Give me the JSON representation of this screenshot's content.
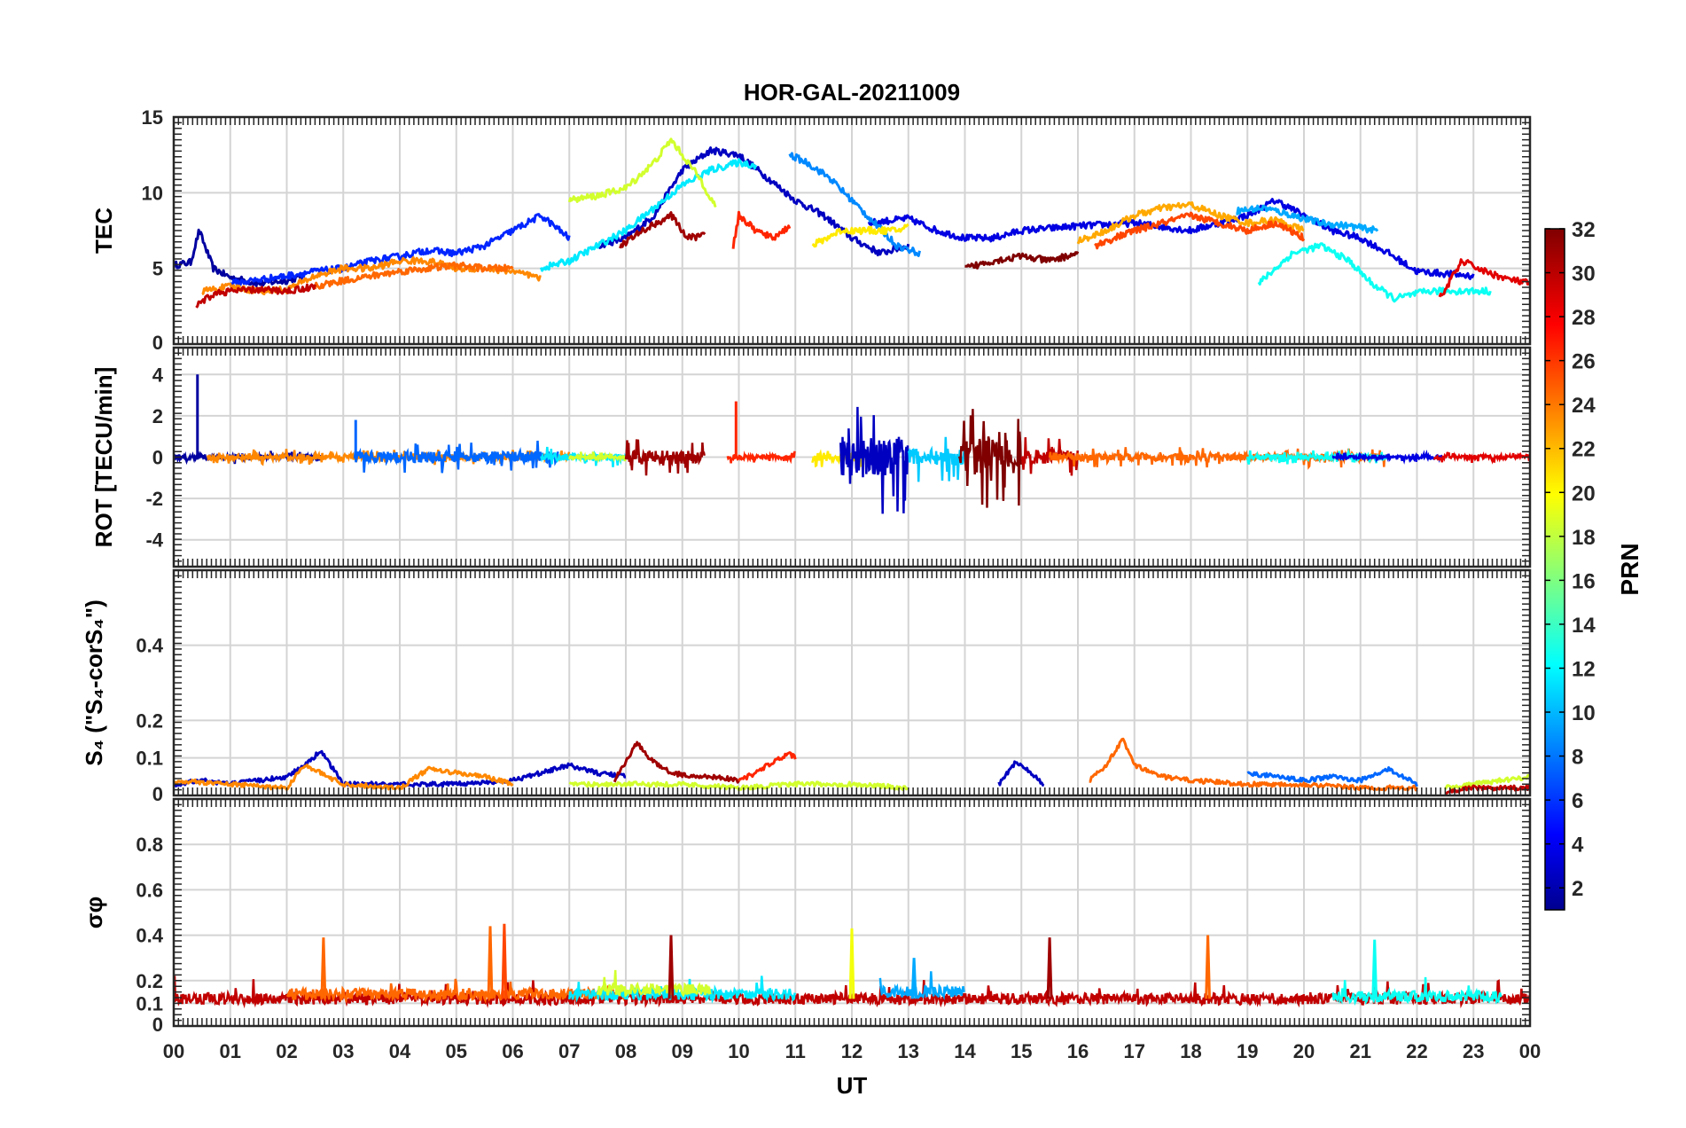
{
  "figure_title": "HOR-GAL-20211009",
  "x_axis": {
    "label": "UT",
    "range": [
      0,
      24
    ],
    "tick_labels": [
      "00",
      "01",
      "02",
      "03",
      "04",
      "05",
      "06",
      "07",
      "08",
      "09",
      "10",
      "11",
      "12",
      "13",
      "14",
      "15",
      "16",
      "17",
      "18",
      "19",
      "20",
      "21",
      "22",
      "23",
      "00"
    ]
  },
  "colorbar": {
    "label": "PRN",
    "colormap": "jet",
    "range": [
      1,
      32
    ],
    "tick_labels": [
      "2",
      "4",
      "6",
      "8",
      "10",
      "12",
      "14",
      "16",
      "18",
      "20",
      "22",
      "24",
      "26",
      "28",
      "30",
      "32"
    ]
  },
  "chart_data": [
    {
      "type": "line",
      "panel": "TEC",
      "ylabel": "TEC",
      "ylim": [
        0,
        15
      ],
      "yticks": [
        "0",
        "5",
        "10",
        "15"
      ],
      "grid": true,
      "series": [
        {
          "prn": 2,
          "x": [
            0.0,
            0.3,
            0.45,
            0.7,
            1.0,
            1.5,
            2.0,
            2.3
          ],
          "values": [
            5.2,
            5.4,
            7.5,
            5.0,
            4.4,
            4.0,
            4.2,
            4.5
          ]
        },
        {
          "prn": 3,
          "x": [
            7.5,
            8.0,
            8.5,
            9.0,
            9.5,
            10.0,
            10.5,
            11.0,
            11.5,
            12.0,
            12.5,
            13.0
          ],
          "values": [
            6.5,
            7.0,
            8.5,
            11.5,
            12.8,
            12.5,
            11.0,
            9.5,
            8.5,
            7.0,
            6.0,
            6.5
          ]
        },
        {
          "prn": 4,
          "x": [
            12.3,
            13.0,
            13.5,
            14.0,
            14.5,
            15.0,
            16.0,
            17.0,
            18.0,
            19.0,
            19.5,
            20.0,
            20.5,
            21.0,
            21.5,
            22.0,
            23.0
          ],
          "values": [
            8.0,
            8.3,
            7.5,
            7.0,
            7.0,
            7.5,
            7.8,
            8.0,
            7.5,
            8.5,
            9.5,
            8.5,
            7.5,
            7.0,
            6.0,
            4.8,
            4.5
          ]
        },
        {
          "prn": 6,
          "x": [
            1.0,
            2.0,
            2.5,
            3.0,
            3.5,
            4.0,
            4.5,
            5.0,
            5.5,
            6.0,
            6.5,
            7.0
          ],
          "values": [
            4.0,
            4.5,
            4.8,
            5.0,
            5.5,
            5.8,
            6.2,
            6.0,
            6.5,
            7.5,
            8.5,
            7.0
          ]
        },
        {
          "prn": 9,
          "x": [
            10.9,
            11.2,
            11.6,
            12.0,
            12.4,
            12.8,
            13.2
          ],
          "values": [
            12.5,
            12.0,
            11.0,
            9.5,
            8.0,
            6.5,
            6.0
          ]
        },
        {
          "prn": 10,
          "x": [
            18.8,
            19.3,
            19.8,
            20.3,
            20.8,
            21.3
          ],
          "values": [
            8.8,
            9.0,
            8.5,
            8.0,
            7.8,
            7.5
          ]
        },
        {
          "prn": 12,
          "x": [
            6.5,
            7.0,
            7.5,
            8.0,
            8.5,
            9.0,
            9.5,
            10.0,
            10.3
          ],
          "values": [
            5.0,
            5.5,
            6.5,
            7.5,
            9.0,
            10.5,
            11.5,
            12.0,
            11.8
          ]
        },
        {
          "prn": 13,
          "x": [
            19.2,
            19.8,
            20.3,
            20.8,
            21.2,
            21.6,
            22.2,
            22.8,
            23.3
          ],
          "values": [
            4.0,
            6.0,
            6.5,
            5.5,
            4.0,
            3.0,
            3.5,
            3.5,
            3.5
          ]
        },
        {
          "prn": 19,
          "x": [
            7.0,
            7.5,
            8.0,
            8.5,
            8.8,
            9.0,
            9.3,
            9.6
          ],
          "values": [
            9.5,
            9.8,
            10.3,
            12.0,
            13.5,
            12.5,
            11.0,
            9.0
          ]
        },
        {
          "prn": 21,
          "x": [
            11.3,
            11.8,
            12.3,
            12.8,
            13.0
          ],
          "values": [
            6.5,
            7.5,
            7.5,
            7.5,
            7.8
          ]
        },
        {
          "prn": 23,
          "x": [
            16.0,
            16.5,
            17.0,
            17.5,
            18.0,
            18.5,
            19.0,
            19.5,
            20.0
          ],
          "values": [
            6.8,
            7.5,
            8.5,
            9.0,
            9.2,
            8.5,
            8.0,
            8.2,
            7.5
          ]
        },
        {
          "prn": 24,
          "x": [
            0.5,
            1.0,
            1.5,
            2.0,
            2.5,
            3.0,
            3.5,
            4.0,
            4.5,
            5.0,
            5.5,
            6.0,
            6.5
          ],
          "values": [
            3.5,
            3.8,
            3.5,
            3.6,
            4.5,
            5.0,
            5.0,
            5.5,
            5.5,
            5.0,
            5.0,
            4.8,
            4.3
          ]
        },
        {
          "prn": 25,
          "x": [
            2.5,
            3.0,
            3.5,
            4.0,
            4.5,
            5.0,
            5.5,
            6.0
          ],
          "values": [
            3.8,
            4.2,
            4.5,
            4.8,
            5.0,
            5.2,
            5.0,
            5.0
          ]
        },
        {
          "prn": 26,
          "x": [
            16.3,
            17.0,
            17.5,
            18.0,
            18.5,
            19.0,
            19.5,
            20.0
          ],
          "values": [
            6.5,
            7.5,
            8.0,
            8.5,
            8.0,
            7.5,
            8.0,
            7.0
          ]
        },
        {
          "prn": 27,
          "x": [
            9.9,
            10.0,
            10.3,
            10.6,
            10.9
          ],
          "values": [
            6.5,
            8.5,
            7.5,
            7.0,
            7.8
          ]
        },
        {
          "prn": 29,
          "x": [
            22.4,
            22.8,
            23.2,
            23.6,
            24.0
          ],
          "values": [
            3.0,
            5.5,
            4.8,
            4.3,
            4.0
          ]
        },
        {
          "prn": 30,
          "x": [
            0.4,
            0.7,
            1.0,
            1.5,
            2.0,
            2.5
          ],
          "values": [
            2.5,
            3.3,
            3.5,
            3.6,
            3.5,
            3.8
          ]
        },
        {
          "prn": 31,
          "x": [
            7.9,
            8.3,
            8.8,
            9.1,
            9.4
          ],
          "values": [
            6.5,
            7.5,
            8.5,
            7.0,
            7.2
          ]
        },
        {
          "prn": 32,
          "x": [
            14.0,
            14.5,
            15.0,
            15.5,
            16.0
          ],
          "values": [
            5.0,
            5.5,
            5.8,
            5.5,
            6.0
          ]
        }
      ]
    },
    {
      "type": "line",
      "panel": "ROT",
      "ylabel": "ROT [TECU/min]",
      "ylim": [
        -5.3,
        5.3
      ],
      "yticks": [
        "-4",
        "-2",
        "0",
        "2",
        "4"
      ],
      "grid": true,
      "bursts": [
        {
          "prn": 2,
          "x_range": [
            0.0,
            2.6
          ],
          "amplitude": 0.35,
          "spike": {
            "x": 0.42,
            "value": 4.0
          }
        },
        {
          "prn": 24,
          "x_range": [
            0.6,
            7.0
          ],
          "amplitude": 0.4
        },
        {
          "prn": 8,
          "x_range": [
            3.2,
            6.8
          ],
          "amplitude": 0.8,
          "spike": {
            "x": 3.22,
            "value": 1.8
          }
        },
        {
          "prn": 12,
          "x_range": [
            6.5,
            8.0
          ],
          "amplitude": 0.5
        },
        {
          "prn": 19,
          "x_range": [
            7.0,
            8.0
          ],
          "amplitude": 0.3
        },
        {
          "prn": 31,
          "x_range": [
            8.0,
            9.4
          ],
          "amplitude": 0.9
        },
        {
          "prn": 27,
          "x_range": [
            9.8,
            11.0
          ],
          "amplitude": 0.3,
          "spike": {
            "x": 9.95,
            "value": 2.7
          }
        },
        {
          "prn": 21,
          "x_range": [
            11.3,
            12.3
          ],
          "amplitude": 0.6
        },
        {
          "prn": 3,
          "x_range": [
            11.8,
            13.0
          ],
          "amplitude": 2.8
        },
        {
          "prn": 11,
          "x_range": [
            13.0,
            14.0
          ],
          "amplitude": 1.2
        },
        {
          "prn": 32,
          "x_range": [
            13.9,
            15.0
          ],
          "amplitude": 2.5
        },
        {
          "prn": 30,
          "x_range": [
            15.0,
            16.0
          ],
          "amplitude": 1.0
        },
        {
          "prn": 25,
          "x_range": [
            15.5,
            21.5
          ],
          "amplitude": 0.5
        },
        {
          "prn": 13,
          "x_range": [
            19.0,
            21.5
          ],
          "amplitude": 0.35
        },
        {
          "prn": 4,
          "x_range": [
            20.5,
            22.5
          ],
          "amplitude": 0.25
        },
        {
          "prn": 29,
          "x_range": [
            22.3,
            24.0
          ],
          "amplitude": 0.3
        }
      ]
    },
    {
      "type": "line",
      "panel": "S4",
      "ylabel": "S₄ (\"S₄-corS₄\")",
      "ylim": [
        0,
        0.6
      ],
      "yticks": [
        "0",
        "0.1",
        "0.2",
        "0.4"
      ],
      "grid": true,
      "series": [
        {
          "prn": 3,
          "x": [
            0.0,
            0.5,
            1.0,
            1.5,
            2.0,
            2.4,
            2.6,
            3.0,
            4.0,
            5.0,
            6.0,
            6.5,
            7.0,
            7.5,
            8.0
          ],
          "values": [
            0.03,
            0.04,
            0.03,
            0.04,
            0.05,
            0.09,
            0.12,
            0.03,
            0.03,
            0.03,
            0.04,
            0.06,
            0.08,
            0.06,
            0.05
          ]
        },
        {
          "prn": 24,
          "x": [
            0.0,
            1.0,
            2.0,
            2.3,
            2.6,
            3.0,
            4.0,
            4.5,
            5.0,
            5.5,
            6.0
          ],
          "values": [
            0.04,
            0.03,
            0.02,
            0.08,
            0.06,
            0.03,
            0.02,
            0.07,
            0.06,
            0.05,
            0.03
          ]
        },
        {
          "prn": 31,
          "x": [
            7.8,
            8.2,
            8.4,
            8.8,
            9.2,
            9.6,
            10.0
          ],
          "values": [
            0.04,
            0.14,
            0.1,
            0.06,
            0.05,
            0.05,
            0.04
          ]
        },
        {
          "prn": 27,
          "x": [
            10.0,
            10.3,
            10.6,
            10.9,
            11.0
          ],
          "values": [
            0.04,
            0.06,
            0.09,
            0.11,
            0.1
          ]
        },
        {
          "prn": 19,
          "x": [
            7.0,
            8.0,
            9.0,
            10.0,
            11.0,
            12.0,
            13.0
          ],
          "values": [
            0.03,
            0.03,
            0.03,
            0.02,
            0.03,
            0.03,
            0.02
          ]
        },
        {
          "prn": 3,
          "x": [
            14.6,
            14.9,
            15.1,
            15.4
          ],
          "values": [
            0.03,
            0.09,
            0.07,
            0.03
          ]
        },
        {
          "prn": 25,
          "x": [
            16.2,
            16.5,
            16.8,
            17.0,
            17.5,
            18.0,
            19.0,
            20.0,
            21.0,
            22.0
          ],
          "values": [
            0.04,
            0.08,
            0.15,
            0.08,
            0.05,
            0.04,
            0.03,
            0.03,
            0.02,
            0.02
          ]
        },
        {
          "prn": 8,
          "x": [
            19.0,
            19.5,
            20.0,
            20.5,
            21.0,
            21.5,
            22.0
          ],
          "values": [
            0.06,
            0.05,
            0.04,
            0.05,
            0.04,
            0.07,
            0.03
          ]
        },
        {
          "prn": 19,
          "x": [
            22.5,
            23.0,
            23.5,
            24.0
          ],
          "values": [
            0.02,
            0.03,
            0.04,
            0.05
          ]
        },
        {
          "prn": 30,
          "x": [
            22.5,
            23.0,
            23.5,
            24.0
          ],
          "values": [
            0.01,
            0.02,
            0.02,
            0.02
          ]
        }
      ]
    },
    {
      "type": "line",
      "panel": "sigma_phi",
      "ylabel": "σφ",
      "ylim": [
        0,
        1.0
      ],
      "yticks": [
        "0",
        "0.1",
        "0.2",
        "0.4",
        "0.6",
        "0.8"
      ],
      "grid": true,
      "baseline": 0.12,
      "series": [
        {
          "prn": 30,
          "x_range": [
            0.0,
            24.0
          ],
          "level": 0.12
        },
        {
          "prn": 25,
          "x_range": [
            2.0,
            8.0
          ],
          "level": 0.14
        },
        {
          "prn": 12,
          "x_range": [
            7.0,
            11.0
          ],
          "level": 0.14
        },
        {
          "prn": 19,
          "x_range": [
            7.5,
            9.5
          ],
          "level": 0.16
        },
        {
          "prn": 10,
          "x_range": [
            12.5,
            14.0
          ],
          "level": 0.15
        },
        {
          "prn": 13,
          "x_range": [
            20.5,
            23.5
          ],
          "level": 0.13
        }
      ],
      "spikes": [
        {
          "prn": 25,
          "x": 2.65,
          "value": 0.39
        },
        {
          "prn": 25,
          "x": 5.6,
          "value": 0.44
        },
        {
          "prn": 26,
          "x": 5.85,
          "value": 0.45
        },
        {
          "prn": 31,
          "x": 8.8,
          "value": 0.4
        },
        {
          "prn": 20,
          "x": 12.0,
          "value": 0.43
        },
        {
          "prn": 10,
          "x": 13.1,
          "value": 0.3
        },
        {
          "prn": 31,
          "x": 15.5,
          "value": 0.39
        },
        {
          "prn": 25,
          "x": 18.3,
          "value": 0.4
        },
        {
          "prn": 13,
          "x": 21.25,
          "value": 0.38
        }
      ]
    }
  ]
}
